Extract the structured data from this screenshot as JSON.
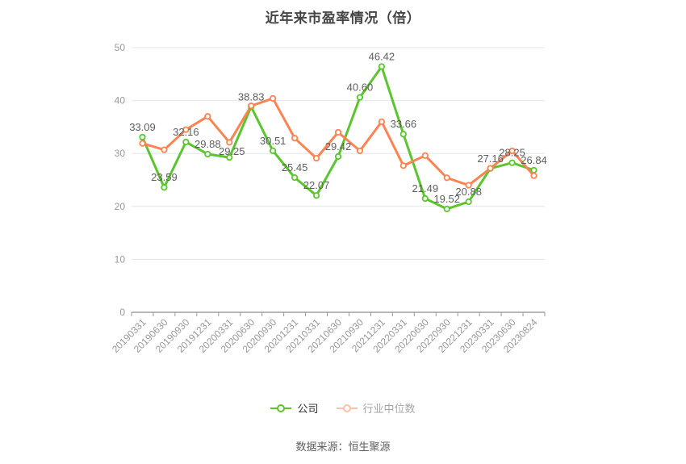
{
  "title": "近年来市盈率情况（倍）",
  "footer": {
    "source_label": "数据来源：恒生聚源"
  },
  "colors": {
    "company": "#5bc52e",
    "industry": "#fc8452",
    "grid_line": "#e0e6f1",
    "axis_line": "#6e7079",
    "axis_label": "#999999",
    "data_label": "#5e5e5e",
    "title": "#454545"
  },
  "chart_data": {
    "type": "line",
    "title": "近年来市盈率情况（倍）",
    "xlabel": "",
    "ylabel": "",
    "ylim": [
      0,
      50
    ],
    "yticks": [
      0,
      10,
      20,
      30,
      40,
      50
    ],
    "grid": true,
    "legend_position": "bottom",
    "categories": [
      "20190331",
      "20190630",
      "20190930",
      "20191231",
      "20200331",
      "20200630",
      "20200930",
      "20201231",
      "20210331",
      "20210630",
      "20210930",
      "20211231",
      "20220331",
      "20220630",
      "20220930",
      "20221231",
      "20230331",
      "20230630",
      "20230824"
    ],
    "series": [
      {
        "name": "公司",
        "color": "#5bc52e",
        "labeled": true,
        "values": [
          33.09,
          23.59,
          32.16,
          29.88,
          29.25,
          38.83,
          30.51,
          25.45,
          22.07,
          29.42,
          40.6,
          46.42,
          33.66,
          21.49,
          19.52,
          20.88,
          27.16,
          28.25,
          26.84
        ]
      },
      {
        "name": "行业中位数",
        "color": "#fc8452",
        "labeled": false,
        "values": [
          31.9,
          30.7,
          34.5,
          37.0,
          32.1,
          39.0,
          40.4,
          32.9,
          29.1,
          34.0,
          30.5,
          36.0,
          27.7,
          29.6,
          25.4,
          24.0,
          27.2,
          30.5,
          25.8
        ]
      }
    ]
  }
}
